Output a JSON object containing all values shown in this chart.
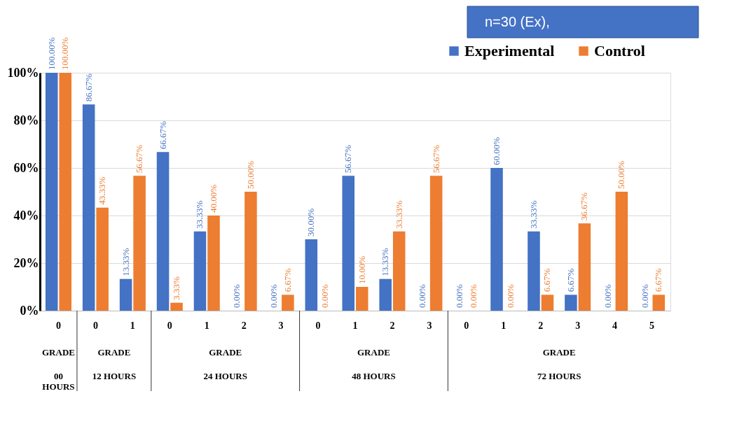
{
  "chart_data": {
    "type": "bar",
    "categories": [
      "0",
      "0",
      "1",
      "0",
      "1",
      "2",
      "3",
      "0",
      "1",
      "2",
      "3",
      "0",
      "1",
      "2",
      "3",
      "4",
      "5"
    ],
    "series": [
      {
        "name": "Experimental",
        "color": "#4472c4",
        "values": [
          100,
          86.67,
          13.33,
          66.67,
          33.33,
          0,
          0,
          30,
          56.67,
          13.33,
          0,
          0,
          60,
          33.33,
          6.67,
          0,
          0
        ],
        "value_labels": [
          "100.00%",
          "86.67%",
          "13.33%",
          "66.67%",
          "33.33%",
          "0.00%",
          "0.00%",
          "30.00%",
          "56.67%",
          "13.33%",
          "0.00%",
          "0.00%",
          "60.00%",
          "33.33%",
          "6.67%",
          "0.00%",
          "0.00%"
        ]
      },
      {
        "name": "Control",
        "color": "#ed7d31",
        "values": [
          100,
          43.33,
          56.67,
          3.33,
          40,
          50,
          6.67,
          0,
          10,
          33.33,
          56.67,
          0,
          0,
          6.67,
          36.67,
          50,
          6.67
        ],
        "value_labels": [
          "100.00%",
          "43.33%",
          "56.67%",
          "3.33%",
          "40.00%",
          "50.00%",
          "6.67%",
          "0.00%",
          "10.00%",
          "33.33%",
          "56.67%",
          "0.00%",
          "0.00%",
          "6.67%",
          "36.67%",
          "50.00%",
          "6.67%"
        ]
      }
    ],
    "ylim": [
      0,
      100
    ],
    "yticks": [
      {
        "value": 0,
        "label": "0%"
      },
      {
        "value": 20,
        "label": "20%"
      },
      {
        "value": 40,
        "label": "40%"
      },
      {
        "value": 60,
        "label": "60%"
      },
      {
        "value": 80,
        "label": "80%"
      },
      {
        "value": 100,
        "label": "100%"
      }
    ],
    "grid": "y",
    "legend": "top right",
    "annotations": [
      "n=30 (Ex),",
      "GRADE",
      "00 HOURS",
      "GRADE",
      "12 HOURS",
      "GRADE",
      "24 HOURS",
      "GRADE",
      "48 HOURS",
      "GRADE",
      "72 HOURS"
    ]
  }
}
